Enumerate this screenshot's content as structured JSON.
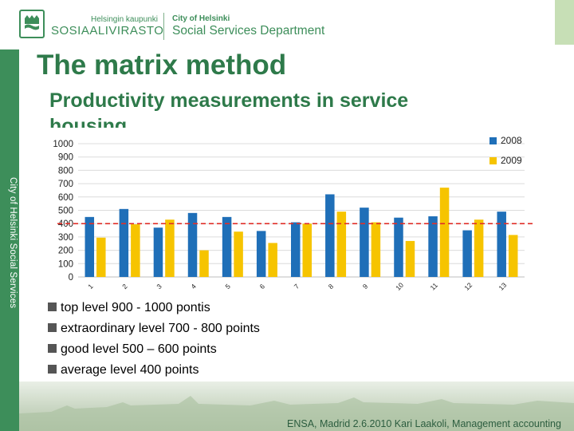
{
  "header": {
    "org_small": "Helsingin kaupunki",
    "org_big": "SOSIAALIVIRASTO",
    "dept_small": "City of Helsinki",
    "dept": "Social Services Department"
  },
  "sidebar": {
    "text": "City of Helsinki Social Services"
  },
  "title": "The matrix method",
  "subtitle": "Productivity measurements in service housing",
  "chart_data": {
    "type": "bar",
    "categories": [
      "1",
      "2",
      "3",
      "4",
      "5",
      "6",
      "7",
      "8",
      "9",
      "10",
      "11",
      "12",
      "13"
    ],
    "series": [
      {
        "name": "2008",
        "color": "#1f6fb8",
        "values": [
          450,
          510,
          370,
          480,
          450,
          345,
          410,
          620,
          520,
          445,
          455,
          350,
          490
        ]
      },
      {
        "name": "2009",
        "color": "#f6c400",
        "values": [
          295,
          395,
          430,
          200,
          340,
          255,
          400,
          490,
          410,
          270,
          670,
          430,
          315
        ]
      }
    ],
    "yticks": [
      "0",
      "100",
      "200",
      "300",
      "400",
      "500",
      "600",
      "700",
      "800",
      "900",
      "1000"
    ],
    "ylim": [
      0,
      1000
    ],
    "reference_line": {
      "value": 400,
      "color": "#e0302a",
      "style": "dashed"
    },
    "legend_position": "top-right",
    "grid": true
  },
  "bullets": [
    "top level 900 - 1000 pontis",
    "extraordinary level 700 - 800 points",
    "good level 500 – 600 points",
    "average level 400 points"
  ],
  "footer": "ENSA, Madrid 2.6.2010 Kari Laakoli, Management accounting"
}
